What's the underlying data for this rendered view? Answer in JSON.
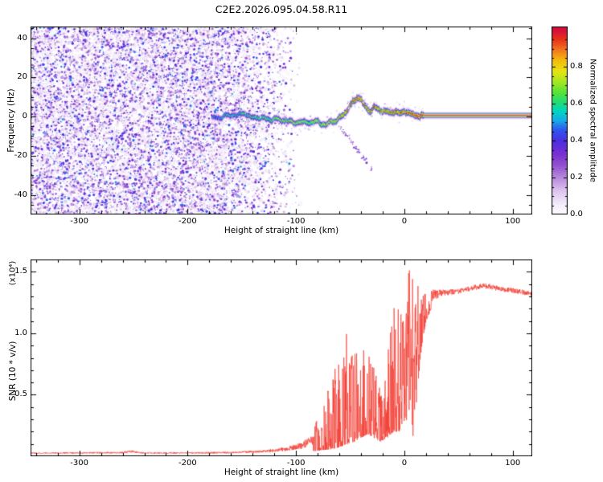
{
  "title": "C2E2.2026.095.04.58.R11",
  "colors": {
    "background": "#ffffff",
    "axis": "#000000",
    "snr_line": "#f23c32"
  },
  "colormap": [
    [
      0.0,
      "#ffffff"
    ],
    [
      0.06,
      "#f3ecfa"
    ],
    [
      0.13,
      "#ddc4ee"
    ],
    [
      0.2,
      "#b98ade"
    ],
    [
      0.27,
      "#9350cf"
    ],
    [
      0.33,
      "#7a2fd2"
    ],
    [
      0.4,
      "#4a2fe0"
    ],
    [
      0.46,
      "#2f55f0"
    ],
    [
      0.51,
      "#19a8e8"
    ],
    [
      0.56,
      "#00d4c4"
    ],
    [
      0.61,
      "#21dd77"
    ],
    [
      0.66,
      "#52e239"
    ],
    [
      0.72,
      "#a4e622"
    ],
    [
      0.78,
      "#e8e312"
    ],
    [
      0.84,
      "#f5b90d"
    ],
    [
      0.9,
      "#f07020"
    ],
    [
      0.95,
      "#e83418"
    ],
    [
      1.0,
      "#d6103c"
    ]
  ],
  "chart_data": [
    {
      "type": "heatmap",
      "xlabel": "Height of straight line (km)",
      "ylabel": "Frequency (Hz)",
      "xlim": [
        -345,
        118
      ],
      "ylim": [
        -50,
        46
      ],
      "xticks": [
        -300,
        -200,
        -100,
        0,
        100
      ],
      "yticks": [
        -40,
        -20,
        0,
        20,
        40
      ],
      "colorbar": {
        "label": "Normalized spectral amplitude",
        "ticks": [
          0.0,
          0.2,
          0.4,
          0.6,
          0.8
        ],
        "range": [
          0,
          1.02
        ]
      },
      "noise_region": {
        "x_start": -345,
        "x_fade_start": -168,
        "x_end": -95,
        "amplitude_max": 0.45
      },
      "signal_trace": {
        "x": [
          -178,
          -170,
          -162,
          -155,
          -148,
          -142,
          -136,
          -130,
          -124,
          -118,
          -112,
          -106,
          -100,
          -94,
          -88,
          -82,
          -76,
          -70,
          -64,
          -58,
          -52,
          -48,
          -44,
          -40,
          -36,
          -32,
          -28,
          -24,
          -20,
          -16,
          -12,
          -8,
          -4,
          0,
          6,
          12,
          18,
          118
        ],
        "freq": [
          0.5,
          -0.5,
          1.5,
          0.5,
          2,
          0,
          -1.5,
          -0.5,
          -2,
          -1,
          -2.5,
          -1.5,
          -3,
          -2,
          -3.5,
          -2.5,
          -4,
          -3,
          -2,
          0,
          4,
          7.5,
          9.5,
          8.5,
          5,
          3,
          5.5,
          4,
          2.5,
          3,
          2,
          2.5,
          1.5,
          2,
          1.2,
          0.8,
          0.6,
          0.5
        ],
        "amp": [
          0.45,
          0.5,
          0.55,
          0.55,
          0.6,
          0.6,
          0.62,
          0.65,
          0.65,
          0.68,
          0.68,
          0.7,
          0.7,
          0.7,
          0.72,
          0.72,
          0.72,
          0.74,
          0.75,
          0.78,
          0.85,
          0.92,
          0.95,
          0.9,
          0.85,
          0.88,
          0.9,
          0.85,
          0.85,
          0.88,
          0.9,
          0.92,
          0.95,
          0.95,
          0.96,
          1,
          1,
          1
        ]
      },
      "flat_line": {
        "x_start": 18,
        "freq": 0.5,
        "amplitude": 1.0
      },
      "secondary_trace": {
        "x": [
          -58,
          -28
        ],
        "freq": [
          -6,
          -28
        ],
        "amplitude": 0.3
      }
    },
    {
      "type": "line",
      "xlabel": "Height of straight line (km)",
      "ylabel": "SNR (10 * v/v)",
      "y_unit": "(x10⁴)",
      "xlim": [
        -345,
        118
      ],
      "ylim": [
        0,
        1.6
      ],
      "xticks": [
        -300,
        -200,
        -100,
        0,
        100
      ],
      "yticks": [
        0.5,
        1.0,
        1.5
      ],
      "series": [
        {
          "name": "SNR",
          "color": "#f23c32",
          "envelope": [
            [
              -350,
              0.015,
              0.035
            ],
            [
              -300,
              0.015,
              0.04
            ],
            [
              -260,
              0.015,
              0.045
            ],
            [
              -252,
              0.02,
              0.06
            ],
            [
              -244,
              0.015,
              0.04
            ],
            [
              -200,
              0.015,
              0.04
            ],
            [
              -160,
              0.015,
              0.045
            ],
            [
              -130,
              0.02,
              0.06
            ],
            [
              -110,
              0.025,
              0.09
            ],
            [
              -95,
              0.03,
              0.14
            ],
            [
              -85,
              0.04,
              0.22
            ],
            [
              -75,
              0.05,
              0.45
            ],
            [
              -65,
              0.06,
              0.7
            ],
            [
              -58,
              0.08,
              0.95
            ],
            [
              -52,
              0.1,
              1.05
            ],
            [
              -46,
              0.12,
              0.9
            ],
            [
              -40,
              0.15,
              0.85
            ],
            [
              -34,
              0.18,
              0.9
            ],
            [
              -28,
              0.15,
              0.75
            ],
            [
              -22,
              0.12,
              0.55
            ],
            [
              -16,
              0.15,
              0.8
            ],
            [
              -10,
              0.2,
              1.25
            ],
            [
              -5,
              0.2,
              1.3
            ],
            [
              0,
              0.25,
              1.5
            ],
            [
              4,
              0.3,
              1.55
            ],
            [
              8,
              0.15,
              1.45
            ],
            [
              12,
              0.5,
              1.4
            ],
            [
              16,
              0.9,
              1.35
            ],
            [
              20,
              1.1,
              1.38
            ],
            [
              26,
              1.22,
              1.4
            ],
            [
              35,
              1.28,
              1.38
            ],
            [
              50,
              1.3,
              1.38
            ],
            [
              65,
              1.33,
              1.42
            ],
            [
              75,
              1.34,
              1.43
            ],
            [
              90,
              1.32,
              1.4
            ],
            [
              105,
              1.3,
              1.38
            ],
            [
              118,
              1.28,
              1.36
            ]
          ]
        }
      ]
    }
  ]
}
